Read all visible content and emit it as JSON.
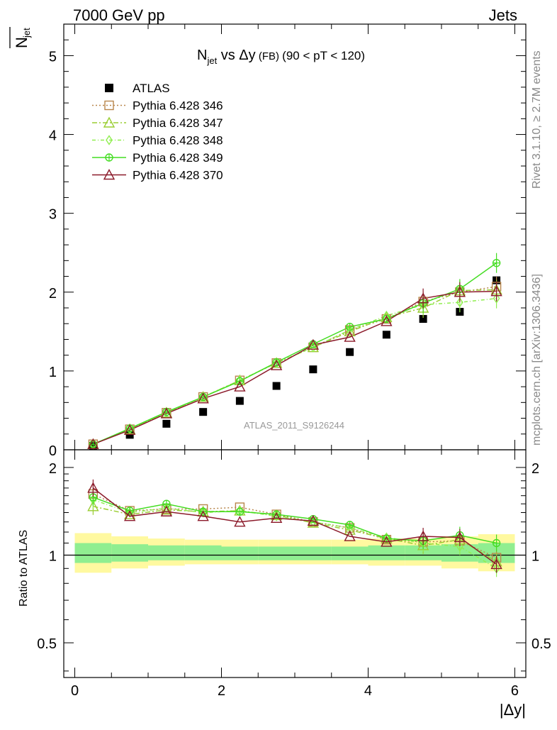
{
  "header": {
    "left": "7000 GeV pp",
    "right": "Jets"
  },
  "side_labels": {
    "rivet": "Rivet 3.1.10, ≥ 2.7M events",
    "mcplots": "mcplots.cern.ch [arXiv:1306.3436]"
  },
  "watermark": "ATLAS_2011_S9126244",
  "chart_data": [
    {
      "type": "scatter",
      "title_main": "N",
      "title_sub": "jet",
      "title_rest": " vs Δy",
      "title_small": " (FB) ",
      "title_tail": "(90 < pT < 120)",
      "ylabel_main": "N",
      "ylabel_sub": "jet",
      "xlabel": "|Δy|",
      "xlim": [
        -0.15,
        6.15
      ],
      "ylim": [
        0,
        5.4
      ],
      "yticks": [
        "0",
        "1",
        "2",
        "3",
        "4",
        "5"
      ],
      "xticks": [
        "0",
        "2",
        "4",
        "6"
      ],
      "x": [
        0.25,
        0.75,
        1.25,
        1.75,
        2.25,
        2.75,
        3.25,
        3.75,
        4.25,
        4.75,
        5.25,
        5.75
      ],
      "series": [
        {
          "name": "ATLAS",
          "color": "#000000",
          "marker": "square-filled",
          "line": "none",
          "values": [
            0.05,
            0.19,
            0.33,
            0.48,
            0.62,
            0.81,
            1.02,
            1.24,
            1.46,
            1.66,
            1.75,
            2.15
          ]
        },
        {
          "name": "Pythia 6.428 346",
          "color": "#b8864b",
          "marker": "square-open",
          "line": "dotted",
          "values": [
            0.07,
            0.26,
            0.47,
            0.67,
            0.88,
            1.1,
            1.3,
            1.52,
            1.66,
            1.88,
            2.0,
            2.07
          ]
        },
        {
          "name": "Pythia 6.428 347",
          "color": "#9acd32",
          "marker": "triangle-open",
          "line": "dashdot",
          "values": [
            0.07,
            0.26,
            0.47,
            0.67,
            0.88,
            1.1,
            1.3,
            1.5,
            1.68,
            1.8,
            2.02,
            2.03
          ]
        },
        {
          "name": "Pythia 6.428 348",
          "color": "#90ee50",
          "marker": "diamond-open",
          "line": "dashdot2",
          "values": [
            0.07,
            0.26,
            0.47,
            0.67,
            0.88,
            1.1,
            1.3,
            1.52,
            1.7,
            1.84,
            1.87,
            1.92
          ]
        },
        {
          "name": "Pythia 6.428 349",
          "color": "#44dd22",
          "marker": "circle-cross",
          "line": "solid",
          "values": [
            0.07,
            0.27,
            0.48,
            0.67,
            0.87,
            1.11,
            1.34,
            1.56,
            1.66,
            1.86,
            2.04,
            2.37
          ]
        },
        {
          "name": "Pythia 6.428 370",
          "color": "#8b1a2a",
          "marker": "triangle-open",
          "line": "solid",
          "values": [
            0.07,
            0.25,
            0.46,
            0.65,
            0.8,
            1.07,
            1.33,
            1.43,
            1.63,
            1.92,
            2.0,
            2.01
          ]
        }
      ]
    },
    {
      "type": "line",
      "ylabel": "Ratio to ATLAS",
      "xlim": [
        -0.15,
        6.15
      ],
      "ylim": [
        0.38,
        2.3
      ],
      "yticks": [
        "0.5",
        "1",
        "2"
      ],
      "x": [
        0.25,
        0.75,
        1.25,
        1.75,
        2.25,
        2.75,
        3.25,
        3.75,
        4.25,
        4.75,
        5.25,
        5.75
      ],
      "bands": {
        "x_edges": [
          0,
          0.5,
          1.0,
          1.5,
          2.0,
          2.5,
          3.0,
          3.5,
          4.0,
          4.5,
          5.0,
          5.5,
          6.0
        ],
        "yellow": [
          [
            0.87,
            1.19
          ],
          [
            0.9,
            1.16
          ],
          [
            0.92,
            1.14
          ],
          [
            0.93,
            1.13
          ],
          [
            0.93,
            1.13
          ],
          [
            0.93,
            1.13
          ],
          [
            0.93,
            1.13
          ],
          [
            0.93,
            1.13
          ],
          [
            0.92,
            1.14
          ],
          [
            0.92,
            1.14
          ],
          [
            0.9,
            1.16
          ],
          [
            0.88,
            1.18
          ]
        ],
        "green": [
          [
            0.94,
            1.1
          ],
          [
            0.95,
            1.09
          ],
          [
            0.96,
            1.08
          ],
          [
            0.96,
            1.08
          ],
          [
            0.96,
            1.07
          ],
          [
            0.96,
            1.07
          ],
          [
            0.96,
            1.07
          ],
          [
            0.96,
            1.07
          ],
          [
            0.96,
            1.08
          ],
          [
            0.96,
            1.08
          ],
          [
            0.95,
            1.09
          ],
          [
            0.94,
            1.1
          ]
        ]
      },
      "series": [
        {
          "name": "Pythia 6.428 346",
          "color": "#b8864b",
          "values": [
            1.62,
            1.42,
            1.44,
            1.44,
            1.46,
            1.38,
            1.3,
            1.24,
            1.13,
            1.11,
            1.12,
            0.98
          ]
        },
        {
          "name": "Pythia 6.428 347",
          "color": "#9acd32",
          "values": [
            1.47,
            1.38,
            1.43,
            1.41,
            1.42,
            1.37,
            1.29,
            1.22,
            1.14,
            1.08,
            1.13,
            0.95
          ]
        },
        {
          "name": "Pythia 6.428 348",
          "color": "#90ee50",
          "values": [
            1.55,
            1.4,
            1.45,
            1.4,
            1.42,
            1.36,
            1.3,
            1.24,
            1.15,
            1.1,
            1.07,
            0.9
          ]
        },
        {
          "name": "Pythia 6.428 349",
          "color": "#44dd22",
          "values": [
            1.58,
            1.42,
            1.5,
            1.41,
            1.41,
            1.38,
            1.33,
            1.27,
            1.14,
            1.12,
            1.17,
            1.1
          ]
        },
        {
          "name": "Pythia 6.428 370",
          "color": "#8b1a2a",
          "values": [
            1.7,
            1.36,
            1.41,
            1.36,
            1.3,
            1.34,
            1.31,
            1.16,
            1.11,
            1.16,
            1.15,
            0.93
          ]
        }
      ]
    }
  ]
}
